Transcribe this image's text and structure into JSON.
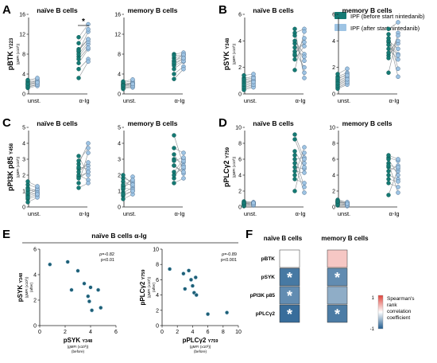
{
  "colors": {
    "before": "#157a74",
    "after": "#9ec4e4",
    "line": "#8a8f93",
    "axis": "#222222",
    "heat_pos": "#e0433a",
    "heat_neg": "#1f5b8f"
  },
  "legend": {
    "before": "IPF (before start nintedanib)",
    "after": "IPF (after start nintedanib)"
  },
  "headers": {
    "naive": "naïve B cells",
    "memory": "memory B cells"
  },
  "paired_x": {
    "unst": "unst.",
    "aig": "α-Ig"
  },
  "units": {
    "gmfi": "(gMFI (x10³))",
    "gmfi_before": "(before)",
    "gmfi_after": "(after)"
  },
  "chart_data": [
    {
      "panel": "A",
      "type": "scatter",
      "marker": "BTK",
      "phospho": "Y223",
      "ylim": [
        0,
        16
      ],
      "yticks": [
        "0",
        "4",
        "8",
        "12",
        "16"
      ],
      "naive": {
        "unst_before": [
          2.0,
          1.4,
          2.6,
          1.9,
          1.2,
          2.4,
          1.7,
          2.2,
          1.5,
          2.8,
          2.0
        ],
        "unst_after": [
          2.4,
          1.8,
          2.9,
          2.3,
          1.6,
          2.6,
          2.1,
          2.6,
          1.9,
          3.2,
          2.3
        ],
        "aig_before": [
          8.5,
          6.2,
          9.0,
          7.5,
          5.0,
          10.2,
          8.0,
          7.0,
          3.2,
          11.4,
          8.7
        ],
        "aig_after": [
          12.5,
          9.0,
          11.0,
          10.0,
          7.0,
          13.0,
          10.5,
          9.3,
          6.5,
          14.0,
          11.0
        ]
      },
      "memory": {
        "unst_before": [
          1.8,
          1.2,
          2.3,
          1.6,
          1.0,
          2.0,
          1.5,
          1.9,
          1.3,
          2.5,
          1.7
        ],
        "unst_after": [
          2.1,
          1.5,
          2.6,
          2.0,
          1.3,
          2.3,
          1.8,
          2.2,
          1.6,
          2.9,
          2.0
        ],
        "aig_before": [
          6.5,
          5.0,
          7.2,
          6.0,
          4.0,
          8.0,
          6.7,
          5.7,
          3.0,
          7.7,
          6.2
        ],
        "aig_after": [
          8.0,
          6.5,
          7.8,
          7.0,
          5.5,
          8.3,
          7.4,
          6.6,
          5.0,
          7.9,
          7.2
        ]
      },
      "significance": "*"
    },
    {
      "panel": "B",
      "type": "scatter",
      "marker": "SYK",
      "phospho": "Y348",
      "ylim": [
        0,
        6
      ],
      "yticks": [
        "0",
        "2",
        "4",
        "6"
      ],
      "naive": {
        "unst_before": [
          0.8,
          0.4,
          1.2,
          0.6,
          1.0,
          0.3,
          0.9,
          0.5,
          1.4,
          0.7,
          1.1
        ],
        "unst_after": [
          1.0,
          0.6,
          1.3,
          0.8,
          1.1,
          0.5,
          1.0,
          0.7,
          1.5,
          0.9,
          1.2
        ],
        "aig_before": [
          3.8,
          4.6,
          2.6,
          3.2,
          4.9,
          1.8,
          4.0,
          3.5,
          2.9,
          4.4,
          3.0
        ],
        "aig_after": [
          2.5,
          4.9,
          3.6,
          2.0,
          1.2,
          4.7,
          3.0,
          2.8,
          4.2,
          1.6,
          3.9
        ]
      },
      "memory": {
        "unst_before": [
          0.9,
          0.5,
          1.3,
          0.7,
          1.1,
          0.4,
          1.0,
          0.6,
          1.5,
          0.8,
          1.2
        ],
        "unst_after": [
          1.2,
          0.8,
          1.6,
          1.0,
          1.5,
          0.7,
          1.3,
          0.9,
          1.9,
          1.1,
          1.4
        ],
        "aig_before": [
          3.9,
          4.9,
          2.9,
          3.4,
          4.5,
          1.6,
          4.0,
          3.7,
          2.7,
          4.2,
          3.1
        ],
        "aig_after": [
          3.0,
          5.4,
          3.8,
          2.6,
          1.9,
          4.6,
          3.4,
          2.9,
          4.4,
          1.3,
          4.0
        ]
      }
    },
    {
      "panel": "C",
      "type": "scatter",
      "marker": "PI3K p85",
      "phospho": "Y458",
      "ylim": [
        0,
        5
      ],
      "yticks": [
        "0",
        "1",
        "2",
        "3",
        "4",
        "5"
      ],
      "naive": {
        "unst_before": [
          1.0,
          0.7,
          1.4,
          0.5,
          1.2,
          0.8,
          1.6,
          0.9,
          0.3,
          1.1,
          0.6
        ],
        "unst_after": [
          1.1,
          0.9,
          1.2,
          0.7,
          1.0,
          1.1,
          1.3,
          0.8,
          0.6,
          0.9,
          0.8
        ],
        "aig_before": [
          2.4,
          1.9,
          3.2,
          1.5,
          2.0,
          2.7,
          2.2,
          1.2,
          2.5,
          1.8,
          2.9
        ],
        "aig_after": [
          2.6,
          2.2,
          2.0,
          3.4,
          1.7,
          4.0,
          2.8,
          1.5,
          2.4,
          2.2,
          3.7
        ]
      },
      "memory": {
        "unst_before": [
          1.3,
          0.9,
          1.8,
          0.7,
          1.6,
          1.1,
          2.0,
          1.2,
          0.5,
          1.4,
          0.8
        ],
        "unst_after": [
          1.5,
          1.2,
          1.6,
          1.0,
          1.3,
          1.9,
          1.4,
          1.1,
          0.8,
          1.7,
          1.0
        ],
        "aig_before": [
          3.0,
          2.2,
          4.5,
          1.8,
          2.6,
          3.7,
          2.9,
          1.5,
          3.3,
          2.0,
          2.6
        ],
        "aig_after": [
          2.8,
          3.0,
          2.6,
          2.9,
          2.1,
          3.4,
          3.1,
          1.8,
          2.4,
          2.5,
          2.2
        ]
      }
    },
    {
      "panel": "D",
      "type": "scatter",
      "marker": "PLCγ2",
      "phospho": "Y759",
      "ylim": [
        0,
        10
      ],
      "yticks": [
        "0",
        "2",
        "4",
        "6",
        "8",
        "10"
      ],
      "naive": {
        "unst_before": [
          0.4,
          0.2,
          0.6,
          0.3,
          0.5,
          0.1,
          0.4,
          0.3,
          0.7,
          0.2,
          0.5
        ],
        "unst_after": [
          0.5,
          0.3,
          0.6,
          0.4,
          0.5,
          0.2,
          0.5,
          0.4,
          0.6,
          0.3,
          0.5
        ],
        "aig_before": [
          5.0,
          8.5,
          3.5,
          6.0,
          4.5,
          2.0,
          5.5,
          7.0,
          4.0,
          6.5,
          9.1
        ],
        "aig_after": [
          4.8,
          5.5,
          3.0,
          6.2,
          4.3,
          6.8,
          1.8,
          5.0,
          7.5,
          2.5,
          6.0
        ]
      },
      "memory": {
        "unst_before": [
          0.6,
          0.3,
          0.8,
          0.4,
          0.7,
          0.2,
          0.6,
          0.5,
          0.9,
          0.3,
          0.7
        ],
        "unst_after": [
          0.4,
          0.2,
          0.6,
          0.3,
          0.5,
          0.1,
          0.5,
          0.3,
          0.6,
          0.2,
          0.4
        ],
        "aig_before": [
          5.0,
          6.2,
          4.0,
          6.5,
          3.5,
          1.5,
          5.5,
          4.5,
          3.0,
          6.0,
          5.2
        ],
        "aig_after": [
          4.5,
          5.8,
          3.5,
          6.0,
          3.2,
          4.8,
          1.8,
          5.2,
          2.5,
          4.0,
          5.0
        ]
      }
    },
    {
      "panel": "E",
      "type": "scatter",
      "title": "naïve B cells α-Ig",
      "left": {
        "xlabel": "pSYK",
        "xsub": "Y348",
        "ylabel": "pSYK",
        "ysub": "Y348",
        "xlim": [
          0,
          6
        ],
        "ylim": [
          0,
          6
        ],
        "xticks": [
          "0",
          "2",
          "4",
          "6"
        ],
        "yticks": [
          "0",
          "2",
          "4",
          "6"
        ],
        "stats": [
          "ρ=-0.82",
          "p<0.01"
        ],
        "x": [
          0.8,
          2.2,
          2.5,
          3.0,
          3.5,
          3.8,
          3.9,
          4.1,
          4.6,
          4.0,
          4.8
        ],
        "y": [
          4.8,
          5.0,
          2.8,
          4.3,
          3.3,
          2.3,
          1.9,
          1.2,
          2.8,
          3.0,
          1.4
        ]
      },
      "right": {
        "xlabel": "pPLCγ2",
        "xsub": "Y759",
        "ylabel": "pPLCγ2",
        "ysub": "Y759",
        "xlim": [
          0,
          10
        ],
        "ylim": [
          0,
          10
        ],
        "xticks": [
          "0",
          "2",
          "4",
          "6",
          "8",
          "10"
        ],
        "yticks": [
          "0",
          "2",
          "4",
          "6",
          "8",
          "10"
        ],
        "stats": [
          "ρ=-0.89",
          "p<0.001"
        ],
        "x": [
          1.0,
          2.8,
          3.0,
          3.5,
          3.8,
          4.0,
          4.2,
          4.4,
          4.5,
          6.0,
          8.5
        ],
        "y": [
          7.4,
          6.8,
          4.8,
          7.2,
          6.0,
          5.2,
          4.3,
          6.3,
          4.0,
          1.5,
          1.7
        ]
      }
    },
    {
      "panel": "F",
      "type": "heatmap",
      "rows": [
        "pBTK",
        "pSYK",
        "pPI3K p85",
        "pPLCγ2"
      ],
      "columns": [
        "naïve B cells",
        "memory B cells"
      ],
      "values": [
        [
          0.0,
          0.3
        ],
        [
          -0.82,
          -0.7
        ],
        [
          -0.7,
          -0.5
        ],
        [
          -0.89,
          -0.8
        ]
      ],
      "significant": [
        [
          false,
          false
        ],
        [
          true,
          true
        ],
        [
          true,
          false
        ],
        [
          true,
          true
        ]
      ],
      "scale_labels": [
        "1",
        "-1"
      ],
      "scale_title": [
        "Spearman's",
        "rank",
        "correlation",
        "coefficient"
      ]
    }
  ]
}
